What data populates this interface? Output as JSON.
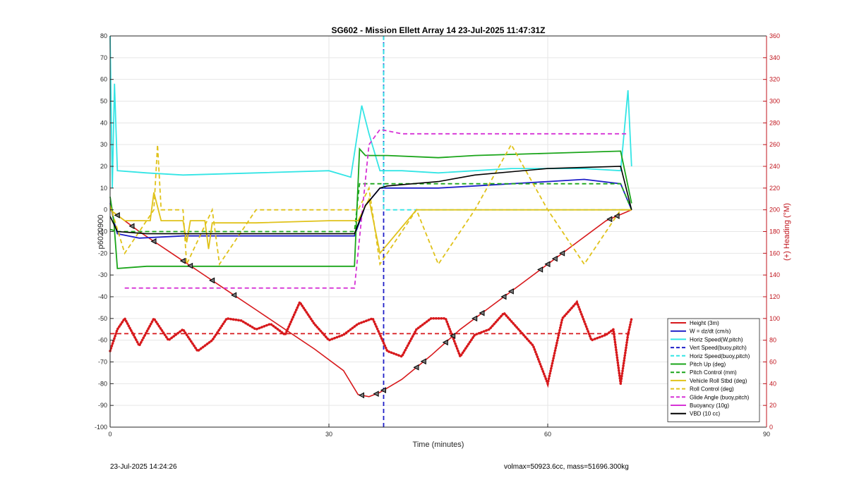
{
  "chart_data": {
    "type": "line",
    "title": "SG602 - Mission Ellett Array 14 23-Jul-2025 11:47:31Z",
    "xlabel": "Time (minutes)",
    "ylabel": "p6020900",
    "y2label": "(+) Heading (°M)",
    "xlim": [
      0,
      90
    ],
    "ylim": [
      -100,
      80
    ],
    "y2lim": [
      0,
      360
    ],
    "xticks": [
      "0",
      "30",
      "60",
      "90"
    ],
    "yticks": [
      "80",
      "70",
      "60",
      "50",
      "40",
      "30",
      "20",
      "10",
      "0",
      "-10",
      "-20",
      "-30",
      "-40",
      "-50",
      "-60",
      "-70",
      "-80",
      "-90",
      "-100"
    ],
    "y2ticks": [
      "360",
      "340",
      "320",
      "300",
      "280",
      "260",
      "240",
      "220",
      "200",
      "180",
      "160",
      "140",
      "120",
      "100",
      "80",
      "60",
      "40",
      "20",
      "0"
    ],
    "grid": true,
    "legend_position": "bottom-right",
    "legend": [
      {
        "label": "Height (3m)",
        "color": "#d7191c",
        "style": "solid"
      },
      {
        "label": "W = dz/dt (cm/s)",
        "color": "#1f1fc8",
        "style": "solid"
      },
      {
        "label": "Horiz Speed(W,pitch)",
        "color": "#33e5e5",
        "style": "solid"
      },
      {
        "label": "Vert Speed(buoy,pitch)",
        "color": "#1f1fc8",
        "style": "dashed"
      },
      {
        "label": "Horiz Speed(buoy,pitch)",
        "color": "#33e5e5",
        "style": "dashed"
      },
      {
        "label": "Pitch Up (deg)",
        "color": "#1aa51a",
        "style": "solid"
      },
      {
        "label": "Pitch Control (mm)",
        "color": "#1aa51a",
        "style": "dashed"
      },
      {
        "label": "Vehicle Roll Stbd (deg)",
        "color": "#e0c21a",
        "style": "solid"
      },
      {
        "label": "Roll Control (deg)",
        "color": "#e0c21a",
        "style": "dashed"
      },
      {
        "label": "Glide Angle (buoy,pitch)",
        "color": "#d633d6",
        "style": "dashed"
      },
      {
        "label": "Buoyancy (10g)",
        "color": "#d633d6",
        "style": "solid"
      },
      {
        "label": "VBD (10 cc)",
        "color": "#000000",
        "style": "solid"
      }
    ],
    "series": [
      {
        "name": "Height (3m)",
        "x": [
          0,
          4,
          8,
          12,
          16,
          20,
          24,
          28,
          32,
          34,
          35.5,
          37,
          40,
          44,
          48,
          52,
          56,
          60,
          64,
          68,
          71.5
        ],
        "y": [
          0,
          -10,
          -19,
          -28,
          -37,
          -46,
          -55,
          -64,
          -74,
          -85,
          -86,
          -84,
          -78,
          -67,
          -55,
          -45,
          -35,
          -25,
          -15,
          -5,
          0
        ]
      },
      {
        "name": "W = dz/dt (cm/s)",
        "x": [
          0,
          0.5,
          1,
          4,
          10,
          20,
          30,
          33.5,
          35,
          37,
          40,
          45,
          50,
          55,
          60,
          65,
          70,
          71.5
        ],
        "y": [
          3,
          -5,
          -11,
          -13,
          -12,
          -12,
          -12,
          -12,
          2,
          10,
          10,
          10,
          11,
          12,
          13,
          14,
          12,
          0
        ]
      },
      {
        "name": "Horiz Speed(W,pitch)",
        "x": [
          0,
          0.3,
          0.6,
          1,
          5,
          10,
          20,
          30,
          33,
          34.5,
          35.5,
          37,
          40,
          45,
          50,
          55,
          60,
          65,
          70,
          71,
          71.5
        ],
        "y": [
          80,
          10,
          58,
          18,
          17,
          16,
          17,
          18,
          15,
          48,
          35,
          18,
          18,
          17,
          18,
          19,
          19,
          19,
          18,
          55,
          20
        ]
      },
      {
        "name": "Vert Speed(buoy,pitch)",
        "x": [
          37.5,
          37.5
        ],
        "y": [
          -100,
          80
        ]
      },
      {
        "name": "Horiz Speed(buoy,pitch)",
        "x": [
          37.5,
          37.5,
          38,
          71.5
        ],
        "y": [
          80,
          0,
          0,
          0
        ]
      },
      {
        "name": "Pitch Up (deg)",
        "x": [
          0,
          0.5,
          1,
          5,
          10,
          20,
          30,
          33.5,
          34.2,
          35,
          38,
          45,
          50,
          60,
          70,
          71.5
        ],
        "y": [
          6,
          -5,
          -27,
          -26,
          -26,
          -26,
          -26,
          -26,
          28,
          25,
          25,
          24,
          25,
          26,
          27,
          3
        ]
      },
      {
        "name": "Pitch Control (mm)",
        "x": [
          0,
          1,
          10,
          20,
          30,
          33.5,
          34.2,
          38,
          50,
          60,
          70,
          71.5
        ],
        "y": [
          -9,
          -10,
          -10,
          -10,
          -10,
          -10,
          12,
          12,
          12,
          12,
          12,
          0
        ]
      },
      {
        "name": "Vehicle Roll Stbd (deg)",
        "x": [
          0,
          2,
          5.5,
          6,
          7,
          10,
          10.5,
          11,
          13,
          13.5,
          14,
          20,
          30,
          34,
          35.5,
          37,
          42,
          45,
          50,
          55,
          60,
          65,
          70,
          71.5
        ],
        "y": [
          0,
          -5,
          -5,
          8,
          -5,
          -5,
          -15,
          -5,
          -5,
          -18,
          -6,
          -6,
          -5,
          -5,
          5,
          -20,
          0,
          0,
          0,
          0,
          0,
          0,
          0,
          0
        ]
      },
      {
        "name": "Roll Control (deg)",
        "x": [
          0,
          2,
          6,
          6.5,
          7,
          10,
          10.5,
          14,
          15,
          20,
          30,
          34,
          35.5,
          37,
          42,
          45,
          50,
          55,
          60,
          65,
          70,
          71.5
        ],
        "y": [
          2,
          -20,
          0,
          30,
          0,
          0,
          -25,
          0,
          -25,
          0,
          0,
          0,
          10,
          -25,
          0,
          -25,
          0,
          30,
          0,
          -25,
          0,
          0
        ]
      },
      {
        "name": "Glide Angle (buoy,pitch)",
        "x": [
          2,
          10,
          20,
          30,
          33.5,
          35.5,
          37,
          40,
          50,
          60,
          70,
          71
        ],
        "y": [
          -36,
          -36,
          -36,
          -36,
          -36,
          30,
          37,
          35,
          35,
          35,
          35,
          35
        ]
      },
      {
        "name": "Buoyancy (10g)",
        "x": [],
        "y": []
      },
      {
        "name": "VBD (10 cc)",
        "x": [
          0,
          1,
          5,
          10,
          20,
          30,
          33.5,
          35,
          37,
          38,
          45,
          50,
          60,
          70,
          71.5
        ],
        "y": [
          -3,
          -10,
          -11,
          -11,
          -11,
          -11,
          -11,
          2,
          10,
          11,
          13,
          16,
          19,
          20,
          0
        ]
      },
      {
        "name": "Heading",
        "axis": "right",
        "x": [
          0,
          1,
          2,
          4,
          6,
          8,
          10,
          12,
          14,
          16,
          18,
          20,
          22,
          24,
          26,
          28,
          30,
          32,
          34,
          36,
          38,
          40,
          42,
          44,
          46,
          48,
          50,
          52,
          54,
          56,
          58,
          60,
          62,
          64,
          66,
          68,
          69,
          70,
          71,
          71.5
        ],
        "y": [
          70,
          90,
          100,
          75,
          100,
          80,
          90,
          70,
          80,
          100,
          98,
          90,
          95,
          85,
          115,
          95,
          80,
          85,
          95,
          100,
          70,
          65,
          90,
          100,
          100,
          65,
          85,
          90,
          105,
          90,
          75,
          40,
          100,
          115,
          80,
          85,
          90,
          40,
          85,
          100
        ]
      },
      {
        "name": "Heading reference",
        "axis": "right",
        "x": [
          0,
          71.5
        ],
        "y": [
          86,
          86
        ]
      }
    ],
    "height_markers_x": [
      1,
      3,
      6,
      10,
      11,
      14,
      17,
      34.5,
      36.5,
      37.5,
      42,
      43,
      46,
      47,
      50,
      51,
      54,
      55,
      59,
      60,
      61,
      62,
      68.5,
      69.5
    ]
  },
  "footer": {
    "timestamp": "23-Jul-2025 14:24:26",
    "stats": "volmax=50923.6cc, mass=51696.300kg"
  }
}
